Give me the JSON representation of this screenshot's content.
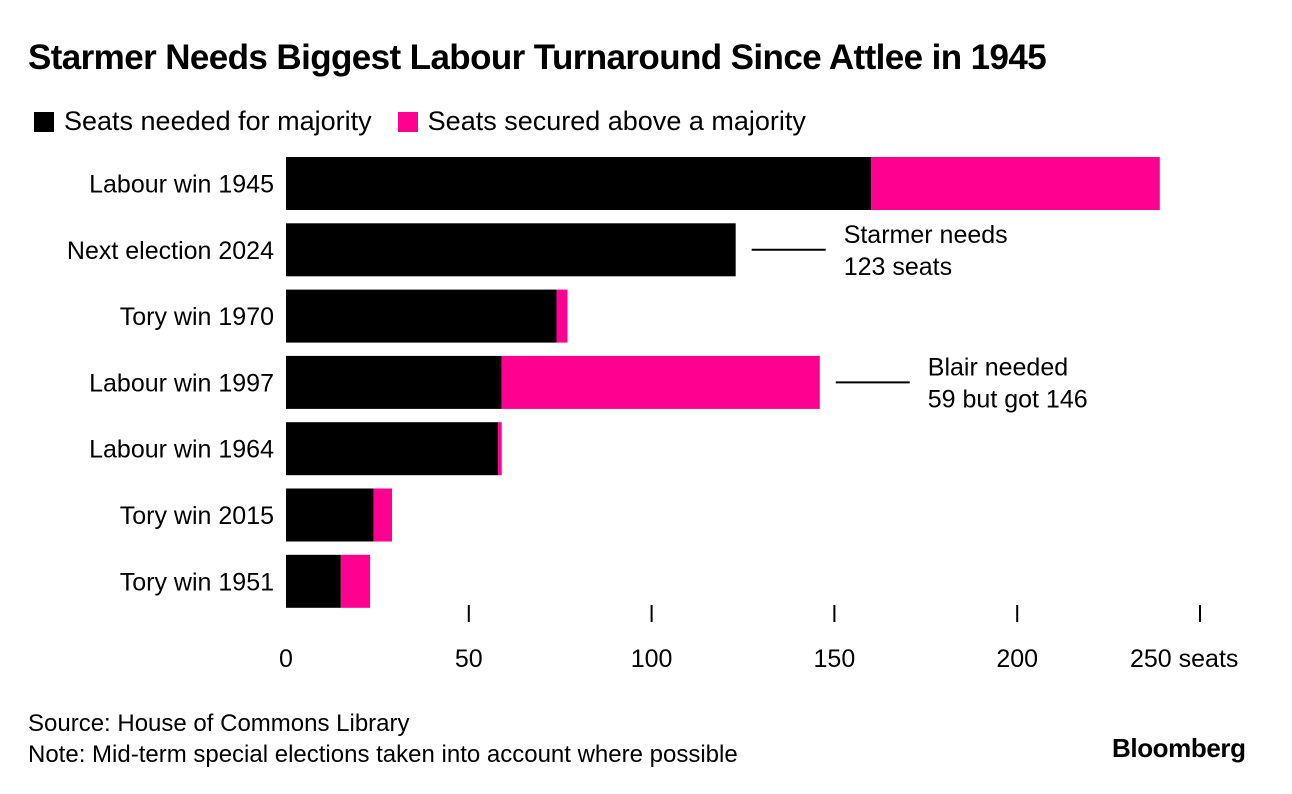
{
  "title": "Starmer Needs Biggest Labour Turnaround Since Attlee in 1945",
  "legend": [
    {
      "label": "Seats needed for majority",
      "color": "#000000"
    },
    {
      "label": "Seats secured above a majority",
      "color": "#ff0090"
    }
  ],
  "chart_data": {
    "type": "bar",
    "orientation": "horizontal",
    "stacked": true,
    "title": "Starmer Needs Biggest Labour Turnaround Since Attlee in 1945",
    "categories": [
      "Labour win 1945",
      "Next election 2024",
      "Tory win 1970",
      "Labour win 1997",
      "Labour win 1964",
      "Tory win 2015",
      "Tory win 1951"
    ],
    "series": [
      {
        "name": "Seats needed for majority",
        "color": "#000000",
        "values": [
          160,
          123,
          74,
          59,
          58,
          24,
          15
        ]
      },
      {
        "name": "Seats secured above a majority",
        "color": "#ff0090",
        "values": [
          79,
          0,
          3,
          87,
          1,
          5,
          8
        ]
      }
    ],
    "xlim": [
      0,
      250
    ],
    "xticks": [
      0,
      50,
      100,
      150,
      200,
      250
    ],
    "xtick_labels": [
      "0",
      "50",
      "100",
      "150",
      "200",
      "250 seats"
    ],
    "annotations": [
      {
        "category": "Next election 2024",
        "lines": [
          "Starmer needs",
          "123 seats"
        ]
      },
      {
        "category": "Labour win 1997",
        "lines": [
          "Blair needed",
          "59 but got 146"
        ]
      }
    ]
  },
  "footer": {
    "source": "Source: House of Commons Library",
    "note": "Note: Mid-term special elections taken into account where possible"
  },
  "brand": "Bloomberg"
}
